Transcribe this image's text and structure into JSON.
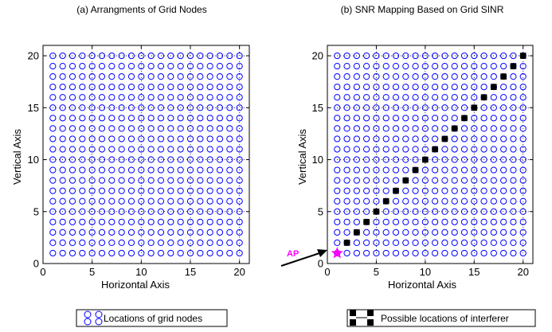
{
  "chart_data": [
    {
      "type": "scatter",
      "title": "(a)   Arrangments of Grid Nodes",
      "xlabel": "Horizontal  Axis",
      "ylabel": "Vertical  Axis",
      "xlim": [
        0,
        21
      ],
      "ylim": [
        0,
        21
      ],
      "xticks": [
        0,
        5,
        10,
        15,
        20
      ],
      "yticks": [
        0,
        5,
        10,
        15,
        20
      ],
      "grid": "dotted at ticks",
      "nodes": {
        "x_from": 1,
        "x_to": 20,
        "y_from": 1,
        "y_to": 20,
        "step": 1,
        "marker": "open circle",
        "color": "#0000ff"
      },
      "legend": {
        "label": "Locations of grid nodes",
        "placement": "bottom"
      }
    },
    {
      "type": "scatter",
      "title": "(b)   SNR Mapping Based on Grid SINR",
      "xlabel": "Horizontal  Axis",
      "ylabel": "Vertical  Axis",
      "xlim": [
        0,
        21
      ],
      "ylim": [
        0,
        21
      ],
      "xticks": [
        0,
        5,
        10,
        15,
        20
      ],
      "yticks": [
        0,
        5,
        10,
        15,
        20
      ],
      "grid": "dotted at ticks",
      "nodes": {
        "x_from": 1,
        "x_to": 20,
        "y_from": 1,
        "y_to": 20,
        "step": 1,
        "marker": "open circle",
        "color": "#0000ff"
      },
      "interferer_points": {
        "x": [
          2,
          3,
          4,
          5,
          6,
          7,
          8,
          9,
          10,
          11,
          12,
          13,
          14,
          15,
          16,
          17,
          18,
          19,
          20
        ],
        "y": [
          2,
          3,
          4,
          5,
          6,
          7,
          8,
          9,
          10,
          11,
          12,
          13,
          14,
          15,
          16,
          17,
          18,
          19,
          20
        ],
        "marker": "filled square",
        "color": "#000000"
      },
      "ap": {
        "label": "AP",
        "x": 1,
        "y": 1,
        "marker": "star",
        "color": "#ff00ff"
      },
      "legend": {
        "label": "Possible locations of interferer",
        "placement": "bottom"
      }
    }
  ]
}
